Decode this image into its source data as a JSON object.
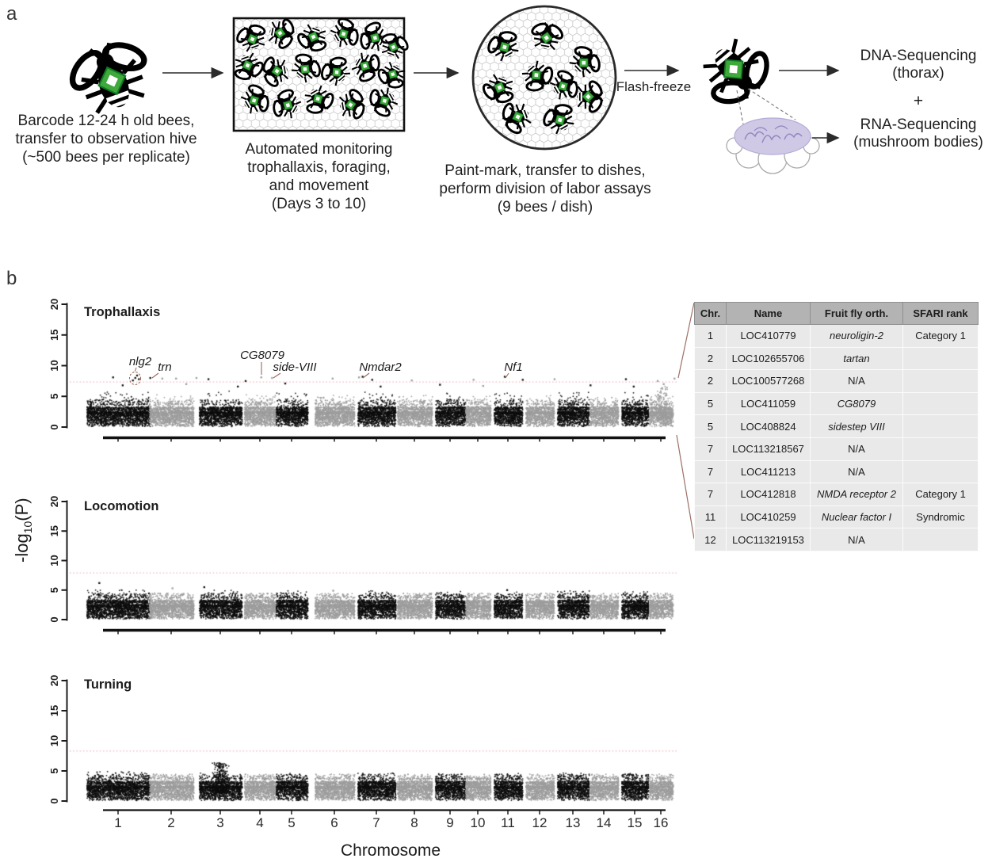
{
  "panel_a": {
    "label": "a",
    "step1_caption": [
      "Barcode 12-24 h old bees,",
      "transfer to observation hive",
      "(~500 bees per replicate)"
    ],
    "step2_caption": [
      "Automated monitoring",
      "trophallaxis, foraging,",
      "and movement",
      "(Days 3 to 10)"
    ],
    "step3_caption": [
      "Paint-mark, transfer to dishes,",
      "perform division of labor assays",
      "(9 bees / dish)"
    ],
    "flash_freeze": "Flash-freeze",
    "plus": "+",
    "dna_seq": [
      "DNA-Sequencing",
      "(thorax)"
    ],
    "rna_seq": [
      "RNA-Sequencing",
      "(mushroom bodies)"
    ],
    "tag_color": "#3fa93c"
  },
  "panel_b": {
    "label": "b",
    "y_axis_prefix": "-log",
    "y_axis_sub": "10",
    "y_axis_suffix": "(P)",
    "y_ticks": [
      "0",
      "5",
      "10",
      "15",
      "20"
    ],
    "x_label": "Chromosome",
    "chromosomes": [
      "1",
      "2",
      "3",
      "4",
      "5",
      "6",
      "7",
      "8",
      "9",
      "10",
      "11",
      "12",
      "13",
      "14",
      "15",
      "16"
    ]
  },
  "table": {
    "headers": [
      "Chr.",
      "Name",
      "Fruit fly orth.",
      "SFARI rank"
    ],
    "rows": [
      {
        "chr": "1",
        "name": "LOC410779",
        "ortholog": "neuroligin-2",
        "italic": true,
        "sfari": "Category 1"
      },
      {
        "chr": "2",
        "name": "LOC102655706",
        "ortholog": "tartan",
        "italic": true,
        "sfari": ""
      },
      {
        "chr": "2",
        "name": "LOC100577268",
        "ortholog": "N/A",
        "italic": false,
        "sfari": ""
      },
      {
        "chr": "5",
        "name": "LOC411059",
        "ortholog": "CG8079",
        "italic": true,
        "sfari": ""
      },
      {
        "chr": "5",
        "name": "LOC408824",
        "ortholog": "sidestep VIII",
        "italic": true,
        "sfari": ""
      },
      {
        "chr": "7",
        "name": "LOC113218567",
        "ortholog": "N/A",
        "italic": false,
        "sfari": ""
      },
      {
        "chr": "7",
        "name": "LOC411213",
        "ortholog": "N/A",
        "italic": false,
        "sfari": ""
      },
      {
        "chr": "7",
        "name": "LOC412818",
        "ortholog": "NMDA receptor 2",
        "italic": true,
        "sfari": "Category 1"
      },
      {
        "chr": "11",
        "name": "LOC410259",
        "ortholog": "Nuclear factor I",
        "italic": true,
        "sfari": "Syndromic"
      },
      {
        "chr": "12",
        "name": "LOC113219153",
        "ortholog": "N/A",
        "italic": false,
        "sfari": ""
      }
    ]
  },
  "chart_data": [
    {
      "type": "scatter",
      "variant": "manhattan",
      "title": "Trophallaxis",
      "xlabel": "Chromosome",
      "ylabel": "-log10(P)",
      "ylim": [
        0,
        20
      ],
      "yticks": [
        0,
        5,
        10,
        15,
        20
      ],
      "grid": false,
      "x_categories": [
        "1",
        "2",
        "3",
        "4",
        "5",
        "6",
        "7",
        "8",
        "9",
        "10",
        "11",
        "12",
        "13",
        "14",
        "15",
        "16"
      ],
      "threshold": 7.35,
      "threshold_color": "#eebac4",
      "point_colors": {
        "odd_chromosomes": "#0d0d0d",
        "even_chromosomes": "#9c9c9c"
      },
      "chrom_tails": [
        5.7,
        5.2,
        5.8,
        5.3,
        5.6,
        5.1,
        5.7,
        5.2,
        5.6,
        5.0,
        5.6,
        5.1,
        5.7,
        5.2,
        5.6,
        4.9
      ],
      "bumps": [
        {
          "x_frac": 0.978,
          "v_max": 6.6,
          "n": 170
        }
      ],
      "signals": [
        [
          0.063,
          8.1
        ],
        [
          0.079,
          6.8
        ],
        [
          0.096,
          7.6
        ],
        [
          0.1,
          8.0
        ],
        [
          0.103,
          8.4
        ],
        [
          0.106,
          7.8
        ],
        [
          0.125,
          8.0
        ],
        [
          0.145,
          7.9
        ],
        [
          0.168,
          7.9
        ],
        [
          0.185,
          7.0
        ],
        [
          0.202,
          8.0
        ],
        [
          0.222,
          7.8
        ],
        [
          0.271,
          6.6
        ],
        [
          0.284,
          7.5
        ],
        [
          0.31,
          8.1
        ],
        [
          0.328,
          8.0
        ],
        [
          0.35,
          7.1
        ],
        [
          0.429,
          7.9
        ],
        [
          0.473,
          8.1
        ],
        [
          0.479,
          8.2
        ],
        [
          0.495,
          7.7
        ],
        [
          0.509,
          6.6
        ],
        [
          0.561,
          7.6
        ],
        [
          0.608,
          6.9
        ],
        [
          0.664,
          7.7
        ],
        [
          0.68,
          6.7
        ],
        [
          0.716,
          8.2
        ],
        [
          0.746,
          7.7
        ],
        [
          0.799,
          7.8
        ],
        [
          0.859,
          6.8
        ],
        [
          0.918,
          7.8
        ],
        [
          0.931,
          6.6
        ],
        [
          0.971,
          7.5
        ],
        [
          0.981,
          7.0
        ],
        [
          0.999,
          7.9
        ]
      ],
      "annotations": [
        {
          "gene": "nlg2",
          "x_frac": 0.1,
          "circled": true
        },
        {
          "gene": "trn",
          "x_frac": 0.127,
          "circled": false
        },
        {
          "gene": "CG8079",
          "x_frac": 0.31,
          "circled": false
        },
        {
          "gene": "side-VIII",
          "x_frac": 0.329,
          "circled": false
        },
        {
          "gene": "Nmdar2",
          "x_frac": 0.478,
          "circled": false
        },
        {
          "gene": "Nf1",
          "x_frac": 0.717,
          "circled": false
        }
      ]
    },
    {
      "type": "scatter",
      "variant": "manhattan",
      "title": "Locomotion",
      "xlabel": "Chromosome",
      "ylabel": "-log10(P)",
      "ylim": [
        0,
        20
      ],
      "yticks": [
        0,
        5,
        10,
        15,
        20
      ],
      "grid": false,
      "x_categories": [
        "1",
        "2",
        "3",
        "4",
        "5",
        "6",
        "7",
        "8",
        "9",
        "10",
        "11",
        "12",
        "13",
        "14",
        "15",
        "16"
      ],
      "threshold": 7.9,
      "threshold_color": "#eebac4",
      "point_colors": {
        "odd_chromosomes": "#0d0d0d",
        "even_chromosomes": "#9c9c9c"
      },
      "chrom_tails": [
        5.0,
        4.5,
        4.9,
        4.4,
        4.8,
        4.4,
        4.8,
        4.4,
        4.7,
        4.3,
        4.7,
        4.3,
        4.8,
        4.4,
        4.7,
        4.2
      ],
      "bumps": [],
      "signals": [
        [
          0.04,
          6.2
        ],
        [
          0.162,
          5.3
        ],
        [
          0.215,
          5.5
        ],
        [
          0.43,
          4.9
        ],
        [
          0.72,
          5.0
        ]
      ],
      "annotations": []
    },
    {
      "type": "scatter",
      "variant": "manhattan",
      "title": "Turning",
      "xlabel": "Chromosome",
      "ylabel": "-log10(P)",
      "ylim": [
        0,
        20
      ],
      "yticks": [
        0,
        5,
        10,
        15,
        20
      ],
      "grid": false,
      "x_categories": [
        "1",
        "2",
        "3",
        "4",
        "5",
        "6",
        "7",
        "8",
        "9",
        "10",
        "11",
        "12",
        "13",
        "14",
        "15",
        "16"
      ],
      "threshold": 8.3,
      "threshold_color": "#eebac4",
      "point_colors": {
        "odd_chromosomes": "#0d0d0d",
        "even_chromosomes": "#9c9c9c"
      },
      "chrom_tails": [
        4.9,
        4.2,
        4.6,
        4.1,
        4.6,
        4.2,
        4.6,
        4.1,
        4.5,
        4.0,
        4.5,
        4.1,
        4.6,
        4.1,
        4.5,
        4.0
      ],
      "bumps": [
        {
          "x_frac": 0.242,
          "v_max": 6.3,
          "n": 300
        }
      ],
      "signals": [],
      "annotations": []
    }
  ]
}
